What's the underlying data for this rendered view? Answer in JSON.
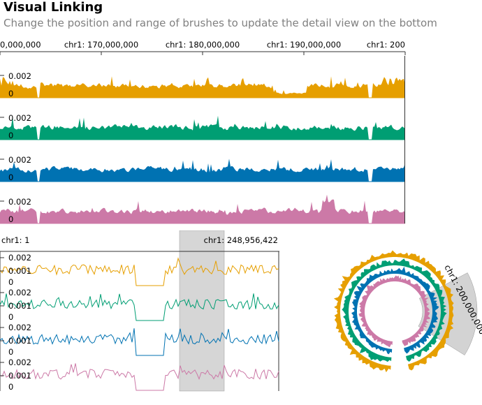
{
  "header": {
    "title": "Visual Linking",
    "subtitle": "Change the position and range of brushes to update the detail view on the bottom"
  },
  "colors": {
    "series": [
      "#E69F00",
      "#009E73",
      "#0072B2",
      "#CC79A7"
    ],
    "brush_fill": "#bbbbbb",
    "axis": "#333333"
  },
  "overview": {
    "axis_ticks": [
      "0,000,000",
      "chr1: 170,000,000",
      "chr1: 180,000,000",
      "chr1: 190,000,000",
      "chr1: 200"
    ],
    "tracks": [
      {
        "y_top_label": "0.002",
        "y_zero_label": "0"
      },
      {
        "y_top_label": "0.002",
        "y_zero_label": "0"
      },
      {
        "y_top_label": "0.002",
        "y_zero_label": "0"
      },
      {
        "y_top_label": "0.002",
        "y_zero_label": "0"
      }
    ]
  },
  "detail": {
    "start_label": "chr1: 1",
    "end_label": "chr1: 248,956,422",
    "tracks": [
      {
        "labels": [
          "0.002",
          "0.001",
          "0"
        ]
      },
      {
        "labels": [
          "0.002",
          "0.001",
          "0"
        ]
      },
      {
        "labels": [
          "0.002",
          "0.001",
          "0"
        ]
      },
      {
        "labels": [
          "0.002",
          "0.001",
          "0"
        ]
      }
    ]
  },
  "circular": {
    "brush_label": "chr1: 200,000,000"
  }
}
